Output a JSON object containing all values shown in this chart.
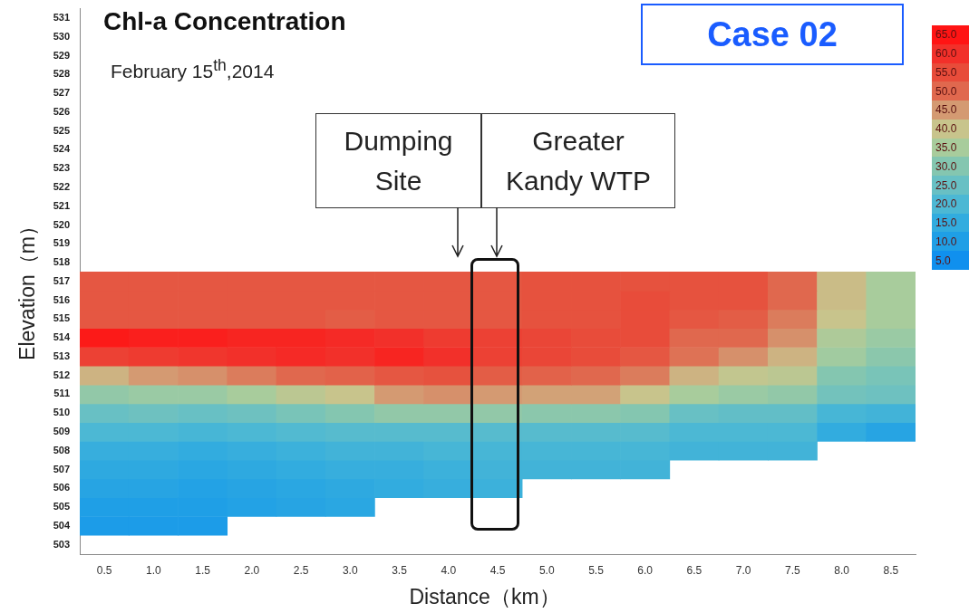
{
  "chart_data": {
    "type": "heatmap",
    "title": "Chl-a Concentration",
    "subtitle": "February 15$^{th}$,2014",
    "xlabel": "Distance（km）",
    "ylabel": "Elevation（m）",
    "categories": [
      "0.5",
      "1.0",
      "1.5",
      "2.0",
      "2.5",
      "3.0",
      "3.5",
      "4.0",
      "4.5",
      "5.0",
      "5.5",
      "6.0",
      "6.5",
      "7.0",
      "7.5",
      "8.0",
      "8.5"
    ],
    "y_categories": [
      "531",
      "530",
      "529",
      "528",
      "527",
      "526",
      "525",
      "524",
      "523",
      "522",
      "521",
      "520",
      "519",
      "518",
      "517",
      "516",
      "515",
      "514",
      "513",
      "512",
      "511",
      "510",
      "509",
      "508",
      "507",
      "506",
      "505",
      "504",
      "503"
    ],
    "cells": [
      [
        null,
        null,
        null,
        null,
        null,
        null,
        null,
        null,
        null,
        null,
        null,
        null,
        null,
        null,
        null,
        null,
        null
      ],
      [
        null,
        null,
        null,
        null,
        null,
        null,
        null,
        null,
        null,
        null,
        null,
        null,
        null,
        null,
        null,
        null,
        null
      ],
      [
        null,
        null,
        null,
        null,
        null,
        null,
        null,
        null,
        null,
        null,
        null,
        null,
        null,
        null,
        null,
        null,
        null
      ],
      [
        null,
        null,
        null,
        null,
        null,
        null,
        null,
        null,
        null,
        null,
        null,
        null,
        null,
        null,
        null,
        null,
        null
      ],
      [
        null,
        null,
        null,
        null,
        null,
        null,
        null,
        null,
        null,
        null,
        null,
        null,
        null,
        null,
        null,
        null,
        null
      ],
      [
        null,
        null,
        null,
        null,
        null,
        null,
        null,
        null,
        null,
        null,
        null,
        null,
        null,
        null,
        null,
        null,
        null
      ],
      [
        null,
        null,
        null,
        null,
        null,
        null,
        null,
        null,
        null,
        null,
        null,
        null,
        null,
        null,
        null,
        null,
        null
      ],
      [
        null,
        null,
        null,
        null,
        null,
        null,
        null,
        null,
        null,
        null,
        null,
        null,
        null,
        null,
        null,
        null,
        null
      ],
      [
        null,
        null,
        null,
        null,
        null,
        null,
        null,
        null,
        null,
        null,
        null,
        null,
        null,
        null,
        null,
        null,
        null
      ],
      [
        null,
        null,
        null,
        null,
        null,
        null,
        null,
        null,
        null,
        null,
        null,
        null,
        null,
        null,
        null,
        null,
        null
      ],
      [
        null,
        null,
        null,
        null,
        null,
        null,
        null,
        null,
        null,
        null,
        null,
        null,
        null,
        null,
        null,
        null,
        null
      ],
      [
        null,
        null,
        null,
        null,
        null,
        null,
        null,
        null,
        null,
        null,
        null,
        null,
        null,
        null,
        null,
        null,
        null
      ],
      [
        null,
        null,
        null,
        null,
        null,
        null,
        null,
        null,
        null,
        null,
        null,
        null,
        null,
        null,
        null,
        null,
        null
      ],
      [
        null,
        null,
        null,
        null,
        null,
        null,
        null,
        null,
        null,
        null,
        null,
        null,
        null,
        null,
        null,
        null,
        null
      ],
      [
        53,
        53,
        53,
        53,
        53,
        53,
        53,
        53,
        53,
        54,
        54,
        54,
        54,
        54,
        50,
        41,
        35
      ],
      [
        53,
        53,
        53,
        53,
        53,
        53,
        53,
        53,
        53,
        54,
        54,
        55,
        54,
        54,
        50,
        41,
        35
      ],
      [
        53,
        53,
        53,
        53,
        53,
        52,
        53,
        53,
        53,
        54,
        54,
        55,
        53,
        52,
        48,
        40,
        35
      ],
      [
        64,
        63,
        63,
        62,
        62,
        61,
        60,
        58,
        57,
        56,
        55,
        55,
        50,
        50,
        46,
        36,
        33
      ],
      [
        57,
        58,
        59,
        60,
        61,
        60,
        62,
        60,
        57,
        56,
        55,
        53,
        49,
        46,
        42,
        34,
        31
      ],
      [
        42,
        45,
        46,
        48,
        50,
        51,
        53,
        54,
        52,
        51,
        50,
        48,
        42,
        39,
        38,
        30,
        28
      ],
      [
        32,
        33,
        33,
        35,
        38,
        40,
        45,
        46,
        45,
        44,
        44,
        40,
        35,
        33,
        32,
        27,
        26
      ],
      [
        25,
        26,
        25,
        26,
        28,
        30,
        32,
        32,
        32,
        31,
        31,
        30,
        25,
        24,
        24,
        19,
        18
      ],
      [
        20,
        20,
        19,
        20,
        21,
        22,
        22,
        22,
        22,
        22,
        22,
        22,
        20,
        20,
        20,
        15,
        12
      ],
      [
        16,
        16,
        15,
        16,
        17,
        18,
        18,
        19,
        19,
        19,
        19,
        19,
        18,
        18,
        18,
        null,
        null
      ],
      [
        14,
        14,
        13,
        14,
        15,
        16,
        16,
        17,
        18,
        18,
        18,
        18,
        null,
        null,
        null,
        null,
        null
      ],
      [
        12,
        12,
        11,
        12,
        13,
        14,
        15,
        16,
        17,
        null,
        null,
        null,
        null,
        null,
        null,
        null,
        null
      ],
      [
        10,
        10,
        10,
        11,
        12,
        13,
        null,
        null,
        null,
        null,
        null,
        null,
        null,
        null,
        null,
        null,
        null
      ],
      [
        9,
        9,
        9,
        null,
        null,
        null,
        null,
        null,
        null,
        null,
        null,
        null,
        null,
        null,
        null,
        null,
        null
      ],
      [
        null,
        null,
        null,
        null,
        null,
        null,
        null,
        null,
        null,
        null,
        null,
        null,
        null,
        null,
        null,
        null,
        null
      ]
    ],
    "clim": [
      2.5,
      67.5
    ],
    "cticks": [
      {
        "value": 65,
        "label": "65.0"
      },
      {
        "value": 60,
        "label": "60.0"
      },
      {
        "value": 55,
        "label": "55.0"
      },
      {
        "value": 50,
        "label": "50.0"
      },
      {
        "value": 45,
        "label": "45.0"
      },
      {
        "value": 40,
        "label": "40.0"
      },
      {
        "value": 35,
        "label": "35.0"
      },
      {
        "value": 30,
        "label": "30.0"
      },
      {
        "value": 25,
        "label": "25.0"
      },
      {
        "value": 20,
        "label": "20.0"
      },
      {
        "value": 15,
        "label": "15.0"
      },
      {
        "value": 10,
        "label": "10.0"
      },
      {
        "value": 5,
        "label": "5.0"
      }
    ],
    "annotations": [
      "Dumping Site",
      "Greater Kandy WTP",
      "Case 02"
    ]
  }
}
